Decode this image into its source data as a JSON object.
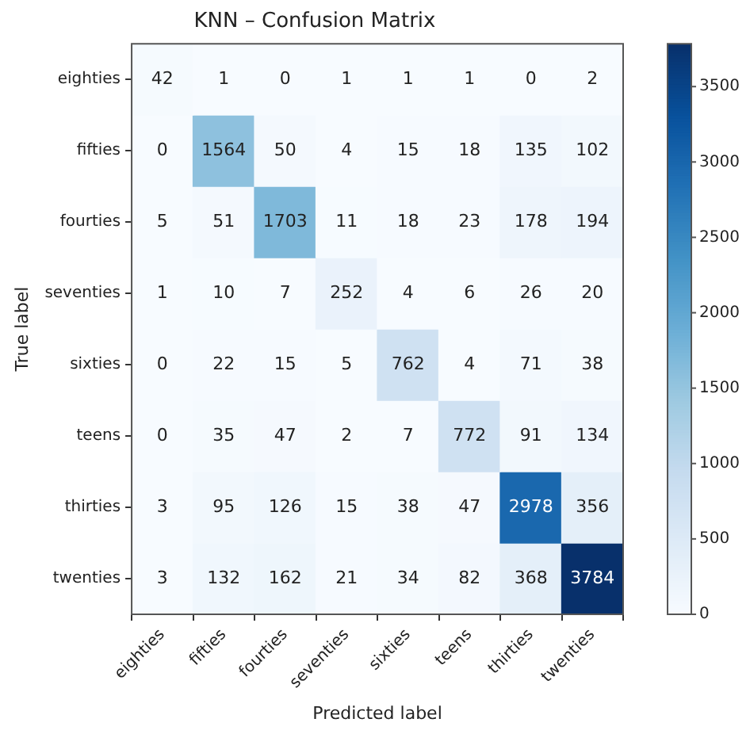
{
  "chart_data": {
    "type": "heatmap",
    "title": "KNN – Confusion Matrix",
    "xlabel": "Predicted label",
    "ylabel": "True label",
    "categories": [
      "eighties",
      "fifties",
      "fourties",
      "seventies",
      "sixties",
      "teens",
      "thirties",
      "twenties"
    ],
    "y_categories": [
      "eighties",
      "fifties",
      "fourties",
      "seventies",
      "sixties",
      "teens",
      "thirties",
      "twenties"
    ],
    "cells": [
      [
        42,
        1,
        0,
        1,
        1,
        1,
        0,
        2
      ],
      [
        0,
        1564,
        50,
        4,
        15,
        18,
        135,
        102
      ],
      [
        5,
        51,
        1703,
        11,
        18,
        23,
        178,
        194
      ],
      [
        1,
        10,
        7,
        252,
        4,
        6,
        26,
        20
      ],
      [
        0,
        22,
        15,
        5,
        762,
        4,
        71,
        38
      ],
      [
        0,
        35,
        47,
        2,
        7,
        772,
        91,
        134
      ],
      [
        3,
        95,
        126,
        15,
        38,
        47,
        2978,
        356
      ],
      [
        3,
        132,
        162,
        21,
        34,
        82,
        368,
        3784
      ]
    ],
    "clim": [
      0,
      3784
    ],
    "cticks": [
      0,
      500,
      1000,
      1500,
      2000,
      2500,
      3000,
      3500
    ],
    "data_labels": true
  }
}
